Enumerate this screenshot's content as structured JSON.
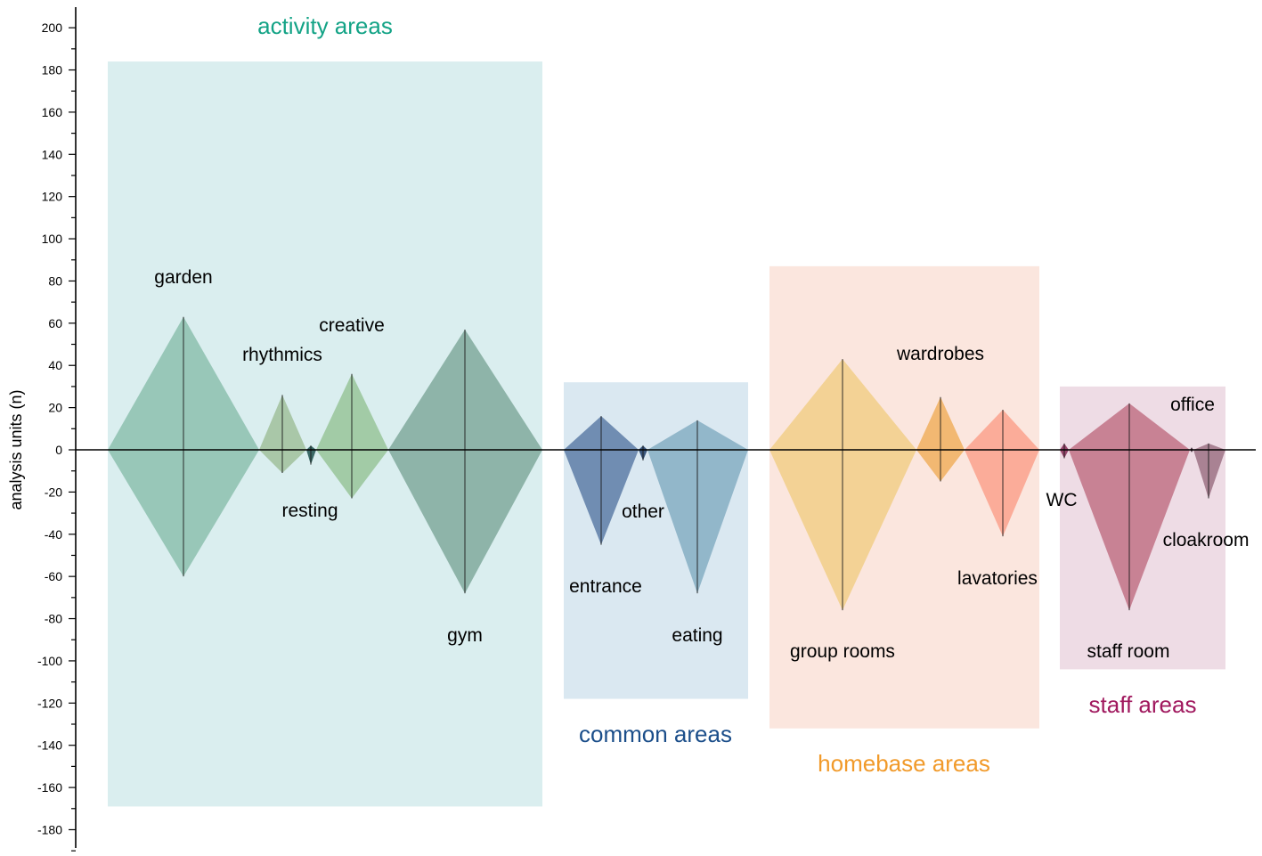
{
  "chart_data": {
    "type": "diamond-area",
    "ylabel": "analysis units (n)",
    "ylim": [
      -180,
      200
    ],
    "yticks": [
      200,
      180,
      160,
      140,
      120,
      100,
      80,
      60,
      40,
      20,
      0,
      -20,
      -40,
      -60,
      -80,
      -100,
      -120,
      -140,
      -160,
      -180
    ],
    "groups": [
      {
        "name": "activity areas",
        "color": "#13A386",
        "fill": "#DAEEEF",
        "ymin": -169,
        "ymax": 184
      },
      {
        "name": "common areas",
        "color": "#1B4E8A",
        "fill": "#DAE8F1",
        "ymin": -118,
        "ymax": 32
      },
      {
        "name": "homebase areas",
        "color": "#F19A2A",
        "fill": "#FBE6DE",
        "ymin": -132,
        "ymax": 87
      },
      {
        "name": "staff areas",
        "color": "#A0185E",
        "fill": "#EEDCE5",
        "ymin": -104,
        "ymax": 30
      }
    ],
    "items": [
      {
        "name": "garden",
        "group": 0,
        "up": 63,
        "down": -60,
        "color": "#92C3B3"
      },
      {
        "name": "rhythmics",
        "group": 0,
        "up": 26,
        "down": -11,
        "color": "#A5C3A2"
      },
      {
        "name": "resting",
        "group": 0,
        "up": 2,
        "down": -7,
        "color": "#2E5D5A"
      },
      {
        "name": "creative",
        "group": 0,
        "up": 36,
        "down": -23,
        "color": "#9DC89F"
      },
      {
        "name": "gym",
        "group": 0,
        "up": 57,
        "down": -68,
        "color": "#88AFA3"
      },
      {
        "name": "entrance",
        "group": 1,
        "up": 16,
        "down": -45,
        "color": "#6784AC"
      },
      {
        "name": "other",
        "group": 1,
        "up": 2,
        "down": -5,
        "color": "#2C4A73"
      },
      {
        "name": "eating",
        "group": 1,
        "up": 14,
        "down": -68,
        "color": "#8CB2C7"
      },
      {
        "name": "group rooms",
        "group": 2,
        "up": 43,
        "down": -76,
        "color": "#F2D08E"
      },
      {
        "name": "wardrobes",
        "group": 2,
        "up": 25,
        "down": -15,
        "color": "#F1B468"
      },
      {
        "name": "lavatories",
        "group": 2,
        "up": 19,
        "down": -41,
        "color": "#FBA792"
      },
      {
        "name": "WC",
        "group": 3,
        "up": 3,
        "down": -4,
        "color": "#8F3A62"
      },
      {
        "name": "staff room",
        "group": 3,
        "up": 22,
        "down": -76,
        "color": "#C47A8D"
      },
      {
        "name": "office",
        "group": 3,
        "up": 1,
        "down": -1,
        "color": "#5A2040"
      },
      {
        "name": "cloakroom",
        "group": 3,
        "up": 3,
        "down": -23,
        "color": "#A37A8C"
      }
    ]
  }
}
